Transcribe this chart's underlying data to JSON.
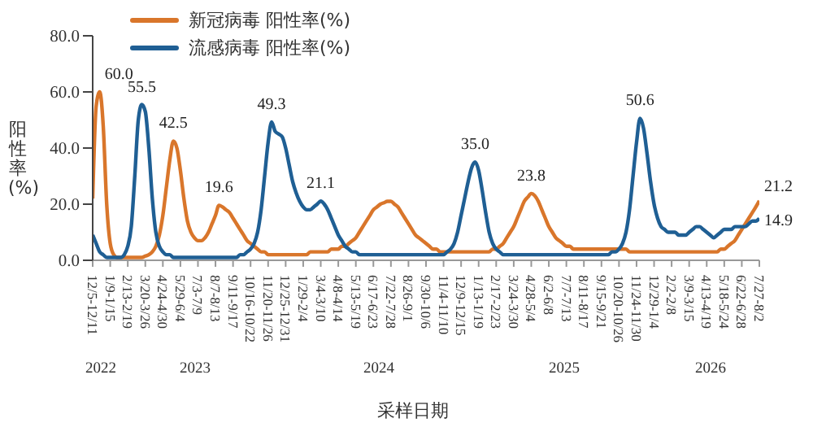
{
  "chart_data": {
    "type": "line",
    "ylabel": "阳性率(%)",
    "xlabel": "采样日期",
    "categories": [
      "12/5-12/11",
      null,
      null,
      null,
      null,
      "1/9-1/15",
      null,
      null,
      null,
      null,
      "2/13-2/19",
      null,
      null,
      null,
      null,
      "3/20-3/26",
      null,
      null,
      null,
      null,
      "4/24-4/30",
      null,
      null,
      null,
      null,
      "5/29-6/4",
      null,
      null,
      null,
      null,
      "7/3-7/9",
      null,
      null,
      null,
      null,
      "8/7-8/13",
      null,
      null,
      null,
      null,
      "9/11-9/17",
      null,
      null,
      null,
      null,
      "10/16-10/22",
      null,
      null,
      null,
      null,
      "11/20-11/26",
      null,
      null,
      null,
      null,
      "12/25-12/31",
      null,
      null,
      null,
      null,
      "1/29-2/4",
      null,
      null,
      null,
      null,
      "3/4-3/10",
      null,
      null,
      null,
      null,
      "4/8-4/14",
      null,
      null,
      null,
      null,
      "5/13-5/19",
      null,
      null,
      null,
      null,
      "6/17-6/23",
      null,
      null,
      null,
      null,
      "7/22-7/28",
      null,
      null,
      null,
      null,
      "8/26-9/1",
      null,
      null,
      null,
      null,
      "9/30-10/6",
      null,
      null,
      null,
      null,
      "11/4-11/10",
      null,
      null,
      null,
      null,
      "12/9-12/15",
      null,
      null,
      null,
      null,
      "1/13-1/19",
      null,
      null,
      null,
      null,
      "2/17-2/23",
      null,
      null,
      null,
      null,
      "3/24-3/30",
      null,
      null,
      null,
      null,
      "4/28-5/4",
      null,
      null,
      null,
      null,
      "6/2-6/8",
      null,
      null,
      null,
      null,
      "7/7-7/13",
      null,
      null,
      null,
      null,
      "8/11-8/17",
      null,
      null,
      null,
      null,
      "9/15-9/21",
      null,
      null,
      null,
      null,
      "10/20-10/26",
      null,
      null,
      null,
      null,
      "11/24-11/30",
      null,
      null,
      null,
      null,
      "12/29-1/4",
      null,
      null,
      null,
      null,
      "2/2-2/8",
      null,
      null,
      null,
      null,
      "3/9-3/15",
      null,
      null,
      null,
      null,
      "4/13-4/19",
      null,
      null,
      null,
      null,
      "5/18-5/24",
      null,
      null,
      null,
      null,
      "6/22-6/28",
      null,
      null,
      null,
      null,
      "7/27-8/2"
    ],
    "series": [
      {
        "name": "新冠病毒 阳性率(%)",
        "color": "#d9762b",
        "values": [
          22,
          55,
          60,
          48,
          20,
          6,
          2,
          1,
          1,
          1,
          1,
          1,
          1,
          1,
          1,
          1.5,
          2,
          3,
          5,
          9,
          16,
          26,
          36,
          42.5,
          40,
          32,
          22,
          14,
          10,
          8,
          7,
          7,
          8,
          10,
          13,
          16,
          19.6,
          19,
          18,
          17,
          15,
          13,
          11,
          9,
          7,
          6,
          5,
          4,
          3,
          3,
          2,
          2,
          2,
          2,
          2,
          2,
          2,
          2,
          2,
          2,
          2,
          2,
          3,
          3,
          3,
          3,
          3,
          3,
          4,
          4,
          4,
          5,
          5,
          6,
          7,
          8,
          10,
          12,
          14,
          16,
          18,
          19,
          20,
          20.5,
          21,
          21,
          20,
          19,
          17,
          15,
          13,
          11,
          9,
          8,
          7,
          6,
          5,
          4,
          4,
          3,
          3,
          3,
          3,
          3,
          3,
          3,
          3,
          3,
          3,
          3,
          3,
          3,
          3,
          3,
          4,
          4,
          5,
          6,
          8,
          10,
          12,
          15,
          18,
          21,
          22.5,
          23.8,
          23,
          21,
          18,
          15,
          12,
          10,
          8,
          7,
          6,
          5,
          5,
          4,
          4,
          4,
          4,
          4,
          4,
          4,
          4,
          4,
          4,
          4,
          4,
          4,
          4,
          4,
          4,
          3,
          3,
          3,
          3,
          3,
          3,
          3,
          3,
          3,
          3,
          3,
          3,
          3,
          3,
          3,
          3,
          3,
          3,
          3,
          3,
          3,
          3,
          3,
          3,
          3,
          3,
          4,
          4,
          5,
          6,
          7,
          9,
          11,
          13,
          15,
          17,
          19,
          21.2
        ],
        "value_labels": [
          null,
          null,
          "60.0",
          null,
          null,
          null,
          null,
          null,
          null,
          null,
          null,
          null,
          null,
          null,
          null,
          null,
          null,
          null,
          null,
          null,
          null,
          null,
          null,
          "42.5",
          null,
          null,
          null,
          null,
          null,
          null,
          null,
          null,
          null,
          null,
          null,
          null,
          "19.6",
          null,
          null,
          null,
          null,
          null,
          null,
          null,
          null,
          null,
          null,
          null,
          null,
          null,
          null,
          null,
          null,
          null,
          null,
          null,
          null,
          null,
          null,
          null,
          null,
          null,
          null,
          null,
          null,
          null,
          null,
          null,
          null,
          null,
          null,
          null,
          null,
          null,
          null,
          null,
          null,
          null,
          null,
          null,
          null,
          null,
          null,
          null,
          null,
          null,
          null,
          null,
          null,
          null,
          null,
          null,
          null,
          null,
          null,
          null,
          null,
          null,
          null,
          null,
          null,
          null,
          null,
          null,
          null,
          null,
          null,
          null,
          null,
          null,
          null,
          null,
          null,
          null,
          null,
          null,
          null,
          null,
          null,
          null,
          null,
          null,
          null,
          null,
          null,
          "23.8",
          null,
          null,
          null,
          null,
          null,
          null,
          null,
          null,
          null,
          null,
          null,
          null,
          null,
          null,
          null,
          null,
          null,
          null,
          null,
          null,
          null,
          null,
          null,
          null,
          null,
          null,
          null,
          null,
          null,
          null,
          null,
          null,
          null,
          null,
          null,
          null,
          null,
          null,
          null,
          null,
          null,
          null,
          null,
          null,
          null,
          null,
          null,
          null,
          null,
          null,
          null,
          null,
          null,
          null,
          null,
          null,
          null,
          null,
          null,
          null,
          null,
          null,
          null,
          null,
          "21.2"
        ]
      },
      {
        "name": "流感病毒 阳性率(%)",
        "color": "#1f5f94",
        "values": [
          9,
          6,
          3,
          2,
          1,
          1,
          1,
          1,
          1,
          2,
          5,
          12,
          30,
          50,
          55.5,
          53,
          40,
          22,
          10,
          5,
          3,
          2,
          2,
          1,
          1,
          1,
          1,
          1,
          1,
          1,
          1,
          1,
          1,
          1,
          1,
          1,
          1,
          1,
          1,
          1,
          1,
          1,
          2,
          2,
          3,
          4,
          6,
          10,
          18,
          30,
          42,
          49.3,
          46,
          45,
          44,
          40,
          34,
          28,
          24,
          21,
          19,
          18,
          18,
          19,
          20,
          21.1,
          20,
          18,
          15,
          12,
          9,
          7,
          5,
          4,
          3,
          3,
          2,
          2,
          2,
          2,
          2,
          2,
          2,
          2,
          2,
          2,
          2,
          2,
          2,
          2,
          2,
          2,
          2,
          2,
          2,
          2,
          2,
          2,
          2,
          2,
          2,
          3,
          4,
          6,
          10,
          16,
          22,
          28,
          33,
          35,
          32,
          25,
          17,
          10,
          6,
          4,
          3,
          2,
          2,
          2,
          2,
          2,
          2,
          2,
          2,
          2,
          2,
          2,
          2,
          2,
          2,
          2,
          2,
          2,
          2,
          2,
          2,
          2,
          2,
          2,
          2,
          2,
          2,
          2,
          2,
          2,
          2,
          2,
          3,
          3,
          4,
          6,
          10,
          18,
          30,
          42,
          50.6,
          47,
          38,
          28,
          20,
          15,
          12,
          11,
          10,
          10,
          10,
          9,
          9,
          9,
          10,
          11,
          12,
          12,
          11,
          10,
          9,
          8,
          9,
          10,
          11,
          11,
          11,
          12,
          12,
          12,
          12,
          13,
          14,
          14,
          14.9
        ],
        "value_labels": [
          null,
          null,
          null,
          null,
          null,
          null,
          null,
          null,
          null,
          null,
          null,
          null,
          null,
          null,
          "55.5",
          null,
          null,
          null,
          null,
          null,
          null,
          null,
          null,
          null,
          null,
          null,
          null,
          null,
          null,
          null,
          null,
          null,
          null,
          null,
          null,
          null,
          null,
          null,
          null,
          null,
          null,
          null,
          null,
          null,
          null,
          null,
          null,
          null,
          null,
          null,
          null,
          "49.3",
          null,
          null,
          null,
          null,
          null,
          null,
          null,
          null,
          null,
          null,
          null,
          null,
          null,
          "21.1",
          null,
          null,
          null,
          null,
          null,
          null,
          null,
          null,
          null,
          null,
          null,
          null,
          null,
          null,
          null,
          null,
          null,
          null,
          null,
          null,
          null,
          null,
          null,
          null,
          null,
          null,
          null,
          null,
          null,
          null,
          null,
          null,
          null,
          null,
          null,
          null,
          null,
          null,
          null,
          null,
          null,
          null,
          null,
          "35.0",
          null,
          null,
          null,
          null,
          null,
          null,
          null,
          null,
          null,
          null,
          null,
          null,
          null,
          null,
          null,
          null,
          null,
          null,
          null,
          null,
          null,
          null,
          null,
          null,
          null,
          null,
          null,
          null,
          null,
          null,
          null,
          null,
          null,
          null,
          null,
          null,
          null,
          null,
          null,
          null,
          null,
          null,
          null,
          null,
          null,
          null,
          "50.6",
          null,
          null,
          null,
          null,
          null,
          null,
          null,
          null,
          null,
          null,
          null,
          null,
          null,
          null,
          null,
          null,
          null,
          null,
          null,
          null,
          null,
          null,
          null,
          null,
          null,
          null,
          null,
          null,
          null,
          null,
          null,
          null,
          null,
          "14.9"
        ]
      }
    ],
    "ylim": [
      0,
      80
    ],
    "yticks": [
      {
        "value": 0,
        "label": "0.0"
      },
      {
        "value": 20,
        "label": "20.0"
      },
      {
        "value": 40,
        "label": "40.0"
      },
      {
        "value": 60,
        "label": "60.0"
      },
      {
        "value": 80,
        "label": "80.0"
      }
    ],
    "annotations": [
      "2022",
      "2023",
      "2024",
      "2025",
      "2026"
    ],
    "legend": "top",
    "grid": false,
    "marker": "none",
    "line_style": "solid"
  }
}
